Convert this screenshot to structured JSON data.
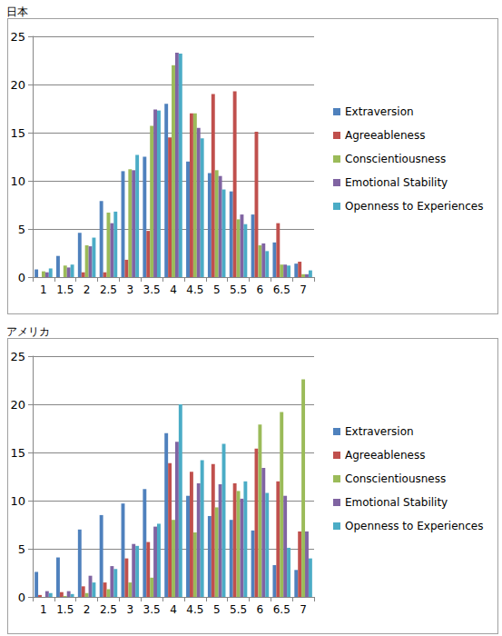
{
  "chart_data": [
    {
      "type": "bar",
      "title": "日本",
      "categories": [
        "1",
        "1.5",
        "2",
        "2.5",
        "3",
        "3.5",
        "4",
        "4.5",
        "5",
        "5.5",
        "6",
        "6.5",
        "7"
      ],
      "series": [
        {
          "name": "Extraversion",
          "color": "#4F81BD",
          "values": [
            0.8,
            2.2,
            4.6,
            7.9,
            11,
            12.5,
            18,
            12,
            10.8,
            8.9,
            6.5,
            3.6,
            1.4
          ]
        },
        {
          "name": "Agreeableness",
          "color": "#C0504D",
          "values": [
            0,
            0,
            0.5,
            0.5,
            1.8,
            4.8,
            14.5,
            17,
            19,
            19.3,
            15.1,
            5.6,
            1.6
          ]
        },
        {
          "name": "Conscientiousness",
          "color": "#9BBB59",
          "values": [
            0.6,
            1.2,
            3.3,
            6.7,
            11.2,
            15.7,
            22,
            17,
            11.1,
            6,
            3.3,
            1.3,
            0.3
          ]
        },
        {
          "name": "Emotional Stability",
          "color": "#8064A2",
          "values": [
            0.5,
            1.0,
            3.2,
            5.6,
            11.1,
            17.4,
            23.3,
            15.5,
            10.5,
            6.5,
            3.5,
            1.3,
            0.3
          ]
        },
        {
          "name": "Openness to Experiences",
          "color": "#4BACC6",
          "values": [
            0.9,
            1.3,
            4.1,
            6.8,
            12.7,
            17.3,
            23.2,
            14.4,
            9.1,
            5.5,
            2.7,
            1.2,
            0.7
          ]
        }
      ],
      "ylim": [
        0,
        25
      ],
      "yticks": [
        0,
        5,
        10,
        15,
        20,
        25
      ],
      "grid": true,
      "legend": "right"
    },
    {
      "type": "bar",
      "title": "アメリカ",
      "categories": [
        "1",
        "1.5",
        "2",
        "2.5",
        "3",
        "3.5",
        "4",
        "4.5",
        "5",
        "5.5",
        "6",
        "6.5",
        "7"
      ],
      "series": [
        {
          "name": "Extraversion",
          "color": "#4F81BD",
          "values": [
            2.6,
            4.1,
            7,
            8.5,
            9.7,
            11.2,
            17,
            10.5,
            8.4,
            8,
            6.9,
            3.3,
            2.8
          ]
        },
        {
          "name": "Agreeableness",
          "color": "#C0504D",
          "values": [
            0.2,
            0.5,
            1.1,
            1.5,
            4,
            5.7,
            13.9,
            13,
            13.8,
            11.8,
            15.4,
            12,
            6.8
          ]
        },
        {
          "name": "Conscientiousness",
          "color": "#9BBB59",
          "values": [
            0,
            0.1,
            0.4,
            0.8,
            1.5,
            2,
            8,
            6.7,
            9.3,
            11,
            17.9,
            19.2,
            22.6
          ]
        },
        {
          "name": "Emotional Stability",
          "color": "#8064A2",
          "values": [
            0.6,
            0.6,
            2.2,
            3.2,
            5.5,
            7.3,
            16.1,
            11.8,
            11.7,
            10.2,
            13.4,
            10.5,
            6.8
          ]
        },
        {
          "name": "Openness to Experiences",
          "color": "#4BACC6",
          "values": [
            0.4,
            0.3,
            1.5,
            2.9,
            5.3,
            7.6,
            20,
            14.2,
            15.9,
            12,
            10.8,
            5.1,
            4
          ]
        }
      ],
      "ylim": [
        0,
        25
      ],
      "yticks": [
        0,
        5,
        10,
        15,
        20,
        25
      ],
      "grid": true,
      "legend": "right"
    }
  ]
}
